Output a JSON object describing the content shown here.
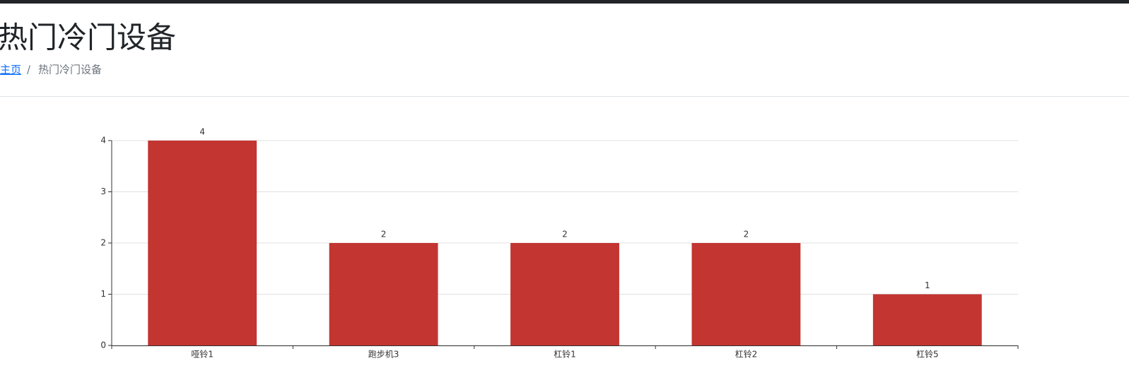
{
  "header": {
    "title": "热门冷门设备",
    "breadcrumb": [
      "主页",
      "热门冷门设备"
    ],
    "breadcrumb_separator": "/"
  },
  "chart_data": {
    "type": "bar",
    "categories": [
      "哑铃1",
      "跑步机3",
      "杠铃1",
      "杠铃2",
      "杠铃5"
    ],
    "values": [
      4,
      2,
      2,
      2,
      1
    ],
    "color": "#c23531",
    "ylim": [
      0,
      4
    ],
    "yticks": [
      0,
      1,
      2,
      3,
      4
    ],
    "grid": true
  }
}
